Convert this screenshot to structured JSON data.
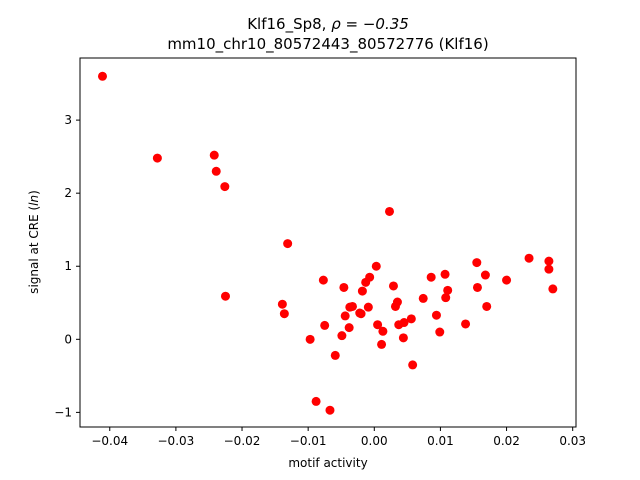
{
  "chart_data": {
    "type": "scatter",
    "title_line1": "Klf16_Sp8, ",
    "title_rho": "ρ = −0.35",
    "title_line2": "mm10_chr10_80572443_80572776 (Klf16)",
    "xlabel": "motif activity",
    "ylabel_prefix": "signal at CRE (",
    "ylabel_italic": "ln",
    "ylabel_suffix": ")",
    "xlim": [
      -0.0445,
      0.0305
    ],
    "ylim": [
      -1.2,
      3.85
    ],
    "xticks": [
      -0.04,
      -0.03,
      -0.02,
      -0.01,
      0.0,
      0.01,
      0.02,
      0.03
    ],
    "xtick_labels": [
      "−0.04",
      "−0.03",
      "−0.02",
      "−0.01",
      "0.00",
      "0.01",
      "0.02",
      "0.03"
    ],
    "yticks": [
      -1,
      0,
      1,
      2,
      3
    ],
    "ytick_labels": [
      "−1",
      "0",
      "1",
      "2",
      "3"
    ],
    "marker_color": "#ff0000",
    "points": [
      {
        "x": -0.0411,
        "y": 3.6
      },
      {
        "x": -0.0328,
        "y": 2.48
      },
      {
        "x": -0.0242,
        "y": 2.52
      },
      {
        "x": -0.0239,
        "y": 2.3
      },
      {
        "x": -0.0226,
        "y": 2.09
      },
      {
        "x": -0.0225,
        "y": 0.59
      },
      {
        "x": -0.0139,
        "y": 0.48
      },
      {
        "x": -0.0136,
        "y": 0.35
      },
      {
        "x": -0.0131,
        "y": 1.31
      },
      {
        "x": -0.0097,
        "y": 0.0
      },
      {
        "x": -0.0088,
        "y": -0.85
      },
      {
        "x": -0.0077,
        "y": 0.81
      },
      {
        "x": -0.0075,
        "y": 0.19
      },
      {
        "x": -0.0067,
        "y": -0.97
      },
      {
        "x": -0.0059,
        "y": -0.22
      },
      {
        "x": -0.0049,
        "y": 0.05
      },
      {
        "x": -0.0046,
        "y": 0.71
      },
      {
        "x": -0.0044,
        "y": 0.32
      },
      {
        "x": -0.0038,
        "y": 0.16
      },
      {
        "x": -0.0037,
        "y": 0.44
      },
      {
        "x": -0.0033,
        "y": 0.45
      },
      {
        "x": -0.0022,
        "y": 0.36
      },
      {
        "x": -0.002,
        "y": 0.35
      },
      {
        "x": -0.0018,
        "y": 0.66
      },
      {
        "x": -0.0013,
        "y": 0.78
      },
      {
        "x": -0.0009,
        "y": 0.44
      },
      {
        "x": -0.0007,
        "y": 0.85
      },
      {
        "x": 0.0003,
        "y": 1.0
      },
      {
        "x": 0.0005,
        "y": 0.2
      },
      {
        "x": 0.0011,
        "y": -0.07
      },
      {
        "x": 0.0013,
        "y": 0.11
      },
      {
        "x": 0.0023,
        "y": 1.75
      },
      {
        "x": 0.0029,
        "y": 0.73
      },
      {
        "x": 0.0032,
        "y": 0.45
      },
      {
        "x": 0.0035,
        "y": 0.51
      },
      {
        "x": 0.0037,
        "y": 0.2
      },
      {
        "x": 0.0044,
        "y": 0.02
      },
      {
        "x": 0.0045,
        "y": 0.23
      },
      {
        "x": 0.0056,
        "y": 0.28
      },
      {
        "x": 0.0058,
        "y": -0.35
      },
      {
        "x": 0.0074,
        "y": 0.56
      },
      {
        "x": 0.0086,
        "y": 0.85
      },
      {
        "x": 0.0094,
        "y": 0.33
      },
      {
        "x": 0.0099,
        "y": 0.1
      },
      {
        "x": 0.0107,
        "y": 0.89
      },
      {
        "x": 0.0108,
        "y": 0.57
      },
      {
        "x": 0.0111,
        "y": 0.67
      },
      {
        "x": 0.0138,
        "y": 0.21
      },
      {
        "x": 0.0155,
        "y": 1.05
      },
      {
        "x": 0.0156,
        "y": 0.71
      },
      {
        "x": 0.0168,
        "y": 0.88
      },
      {
        "x": 0.017,
        "y": 0.45
      },
      {
        "x": 0.02,
        "y": 0.81
      },
      {
        "x": 0.0234,
        "y": 1.11
      },
      {
        "x": 0.0264,
        "y": 1.07
      },
      {
        "x": 0.0264,
        "y": 0.96
      },
      {
        "x": 0.027,
        "y": 0.69
      }
    ]
  }
}
